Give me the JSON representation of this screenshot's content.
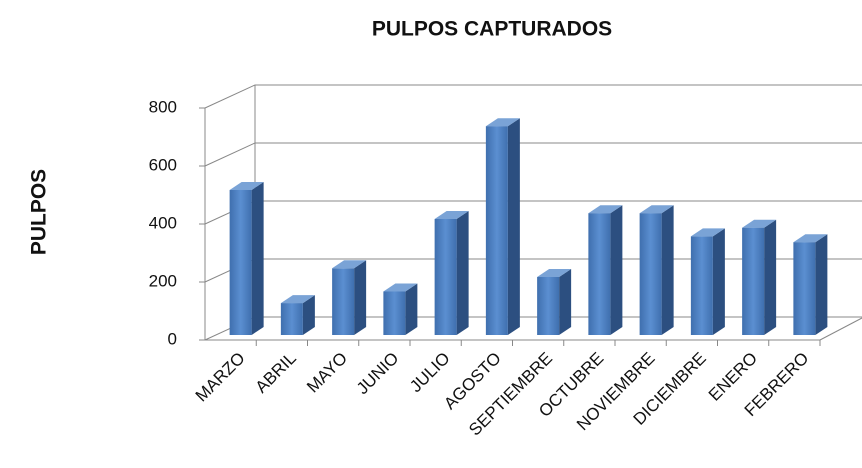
{
  "chart_data": {
    "type": "bar3d",
    "title": "PULPOS CAPTURADOS",
    "y_label": "PULPOS",
    "categories": [
      "MARZO",
      "ABRIL",
      "MAYO",
      "JUNIO",
      "JULIO",
      "AGOSTO",
      "SEPTIEMBRE",
      "OCTUBRE",
      "NOVIEMBRE",
      "DICIEMBRE",
      "ENERO",
      "FEBRERO"
    ],
    "values": [
      500,
      110,
      230,
      150,
      400,
      720,
      200,
      420,
      420,
      340,
      370,
      320
    ],
    "color": "#4f81bd",
    "ylim": [
      0,
      800
    ],
    "yticks": [
      0,
      200,
      400,
      600,
      800
    ],
    "grid": true
  }
}
